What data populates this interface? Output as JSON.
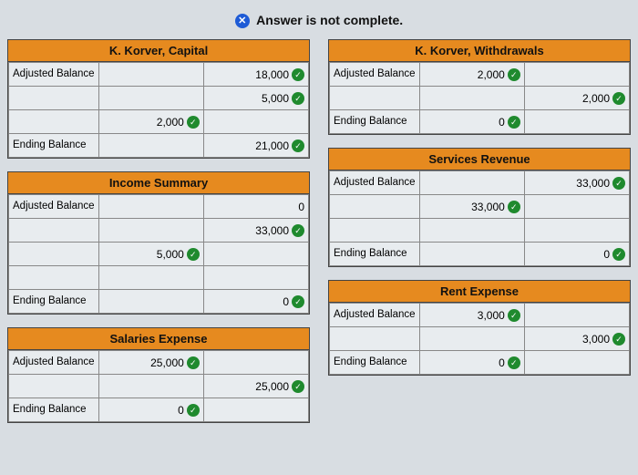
{
  "status": {
    "icon_glyph": "✕",
    "text": "Answer is not complete."
  },
  "left": [
    {
      "title": "K. Korver, Capital",
      "rows": [
        {
          "label": "Adjusted Balance",
          "debit": null,
          "credit": "18,000",
          "credit_check": true
        },
        {
          "label": "",
          "debit": null,
          "credit": "5,000",
          "credit_check": true
        },
        {
          "label": "",
          "debit": "2,000",
          "debit_check": true,
          "credit": null
        },
        {
          "label": "Ending Balance",
          "debit": null,
          "credit": "21,000",
          "credit_check": true
        }
      ]
    },
    {
      "title": "Income Summary",
      "rows": [
        {
          "label": "Adjusted Balance",
          "debit": null,
          "credit": "0",
          "credit_check": false
        },
        {
          "label": "",
          "debit": null,
          "credit": "33,000",
          "credit_check": true
        },
        {
          "label": "",
          "debit": "5,000",
          "debit_check": true,
          "credit": null
        },
        {
          "label": "",
          "debit": null,
          "credit": null
        },
        {
          "label": "Ending Balance",
          "debit": null,
          "credit": "0",
          "credit_check": true
        }
      ]
    },
    {
      "title": "Salaries Expense",
      "rows": [
        {
          "label": "Adjusted Balance",
          "debit": "25,000",
          "debit_check": true,
          "credit": null
        },
        {
          "label": "",
          "debit": null,
          "credit": "25,000",
          "credit_check": true
        },
        {
          "label": "Ending Balance",
          "debit": "0",
          "debit_check": true,
          "credit": null
        }
      ]
    }
  ],
  "right": [
    {
      "title": "K. Korver, Withdrawals",
      "rows": [
        {
          "label": "Adjusted Balance",
          "debit": "2,000",
          "debit_check": true,
          "credit": null
        },
        {
          "label": "",
          "debit": null,
          "credit": "2,000",
          "credit_check": true
        },
        {
          "label": "Ending Balance",
          "debit": "0",
          "debit_check": true,
          "credit": null
        }
      ]
    },
    {
      "title": "Services Revenue",
      "rows": [
        {
          "label": "Adjusted Balance",
          "debit": null,
          "credit": "33,000",
          "credit_check": true
        },
        {
          "label": "",
          "debit": "33,000",
          "debit_check": true,
          "credit": null
        },
        {
          "label": "",
          "debit": null,
          "credit": null
        },
        {
          "label": "Ending Balance",
          "debit": null,
          "credit": "0",
          "credit_check": true
        }
      ]
    },
    {
      "title": "Rent Expense",
      "rows": [
        {
          "label": "Adjusted Balance",
          "debit": "3,000",
          "debit_check": true,
          "credit": null
        },
        {
          "label": "",
          "debit": null,
          "credit": "3,000",
          "credit_check": true
        },
        {
          "label": "Ending Balance",
          "debit": "0",
          "debit_check": true,
          "credit": null
        }
      ]
    }
  ]
}
